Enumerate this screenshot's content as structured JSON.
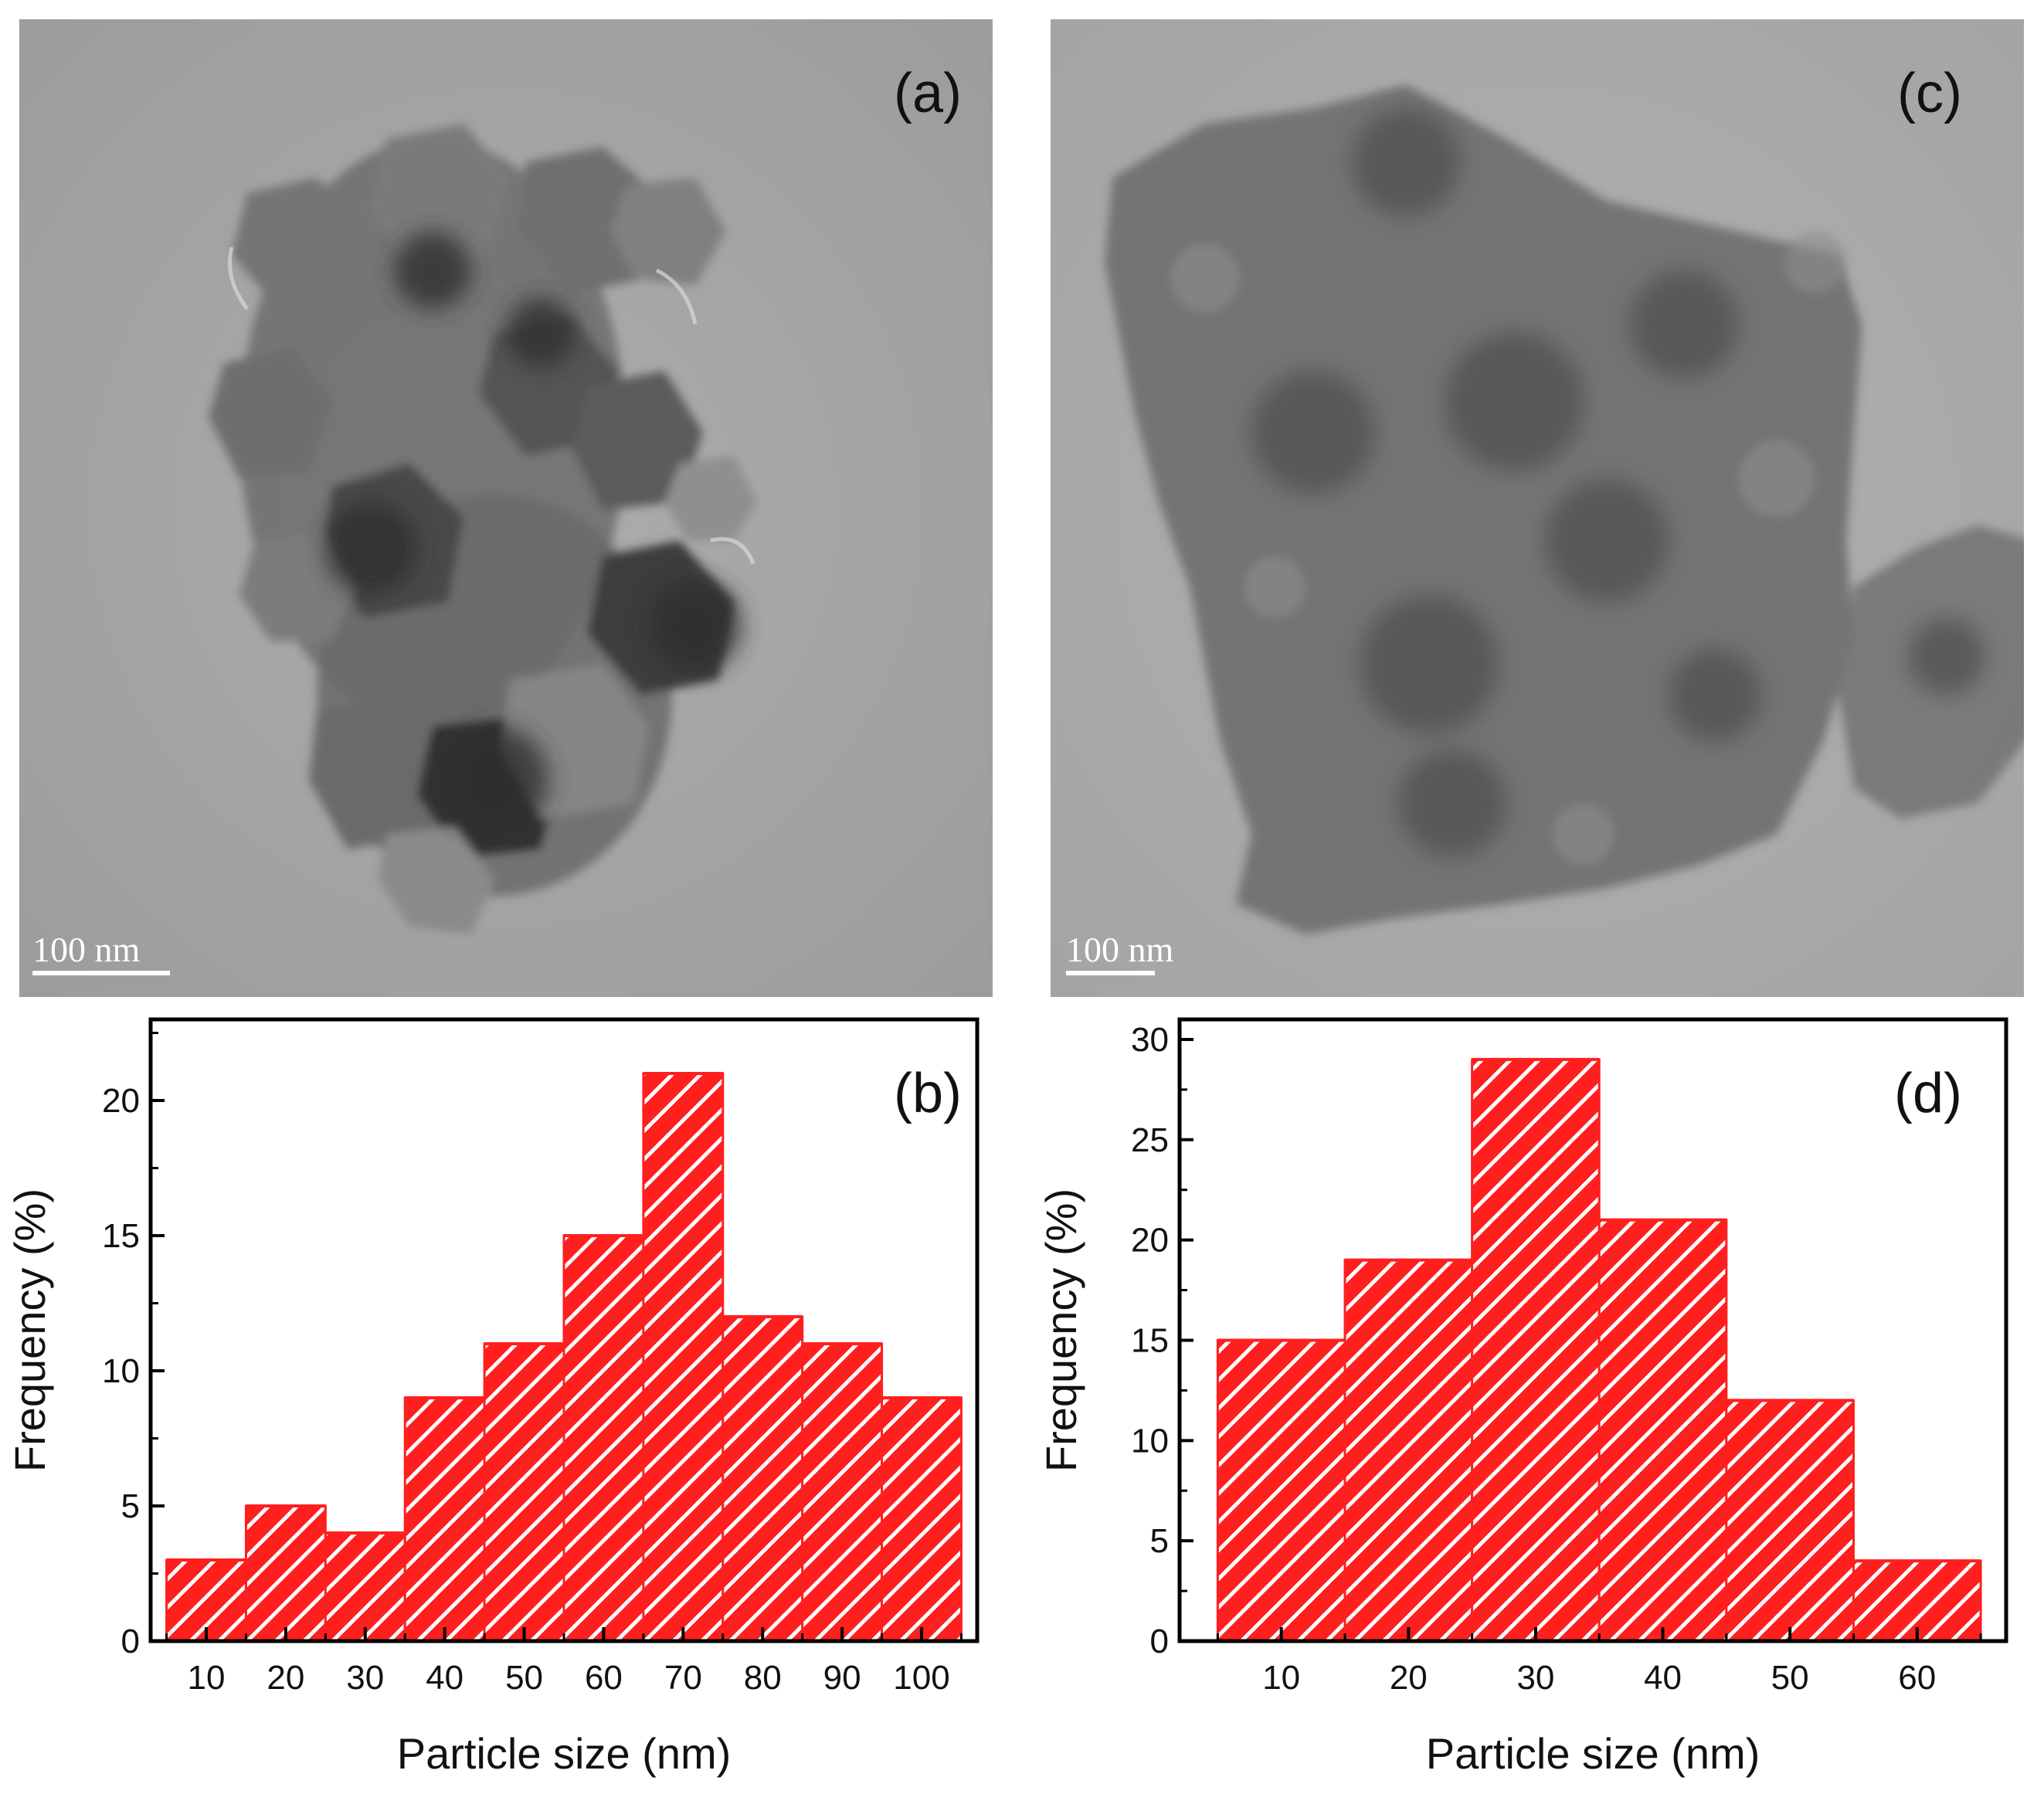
{
  "panels": {
    "a": {
      "label": "(a)",
      "scale_bar": "100 nm"
    },
    "b": {
      "label": "(b)"
    },
    "c": {
      "label": "(c)",
      "scale_bar": "100 nm"
    },
    "d": {
      "label": "(d)"
    }
  },
  "colors": {
    "bar_fill": "#ff1f1f",
    "hatch": "#ffffff",
    "tem_background": "#a6a6a6"
  },
  "chart_data": [
    {
      "panel": "b",
      "type": "bar",
      "histogram": true,
      "bin_width": 10,
      "x": [
        10,
        20,
        30,
        40,
        50,
        60,
        70,
        80,
        90,
        100
      ],
      "values": [
        3,
        5,
        4,
        9,
        11,
        15,
        21,
        12,
        11,
        9
      ],
      "xlabel": "Particle size (nm)",
      "ylabel": "Frequency (%)",
      "xlim": [
        3,
        107
      ],
      "ylim": [
        0,
        23
      ],
      "xticks": [
        10,
        20,
        30,
        40,
        50,
        60,
        70,
        80,
        90,
        100
      ],
      "yticks": [
        0,
        5,
        10,
        15,
        20
      ],
      "grid": false,
      "pattern": "diagonal-hatch"
    },
    {
      "panel": "d",
      "type": "bar",
      "histogram": true,
      "bin_width": 10,
      "x": [
        10,
        20,
        30,
        40,
        50,
        60
      ],
      "values": [
        15,
        19,
        29,
        21,
        12,
        4
      ],
      "xlabel": "Particle size (nm)",
      "ylabel": "Frequency (%)",
      "xlim": [
        2,
        67
      ],
      "ylim": [
        0,
        31
      ],
      "xticks": [
        10,
        20,
        30,
        40,
        50,
        60
      ],
      "yticks": [
        0,
        5,
        10,
        15,
        20,
        25,
        30
      ],
      "grid": false,
      "pattern": "diagonal-hatch"
    }
  ]
}
